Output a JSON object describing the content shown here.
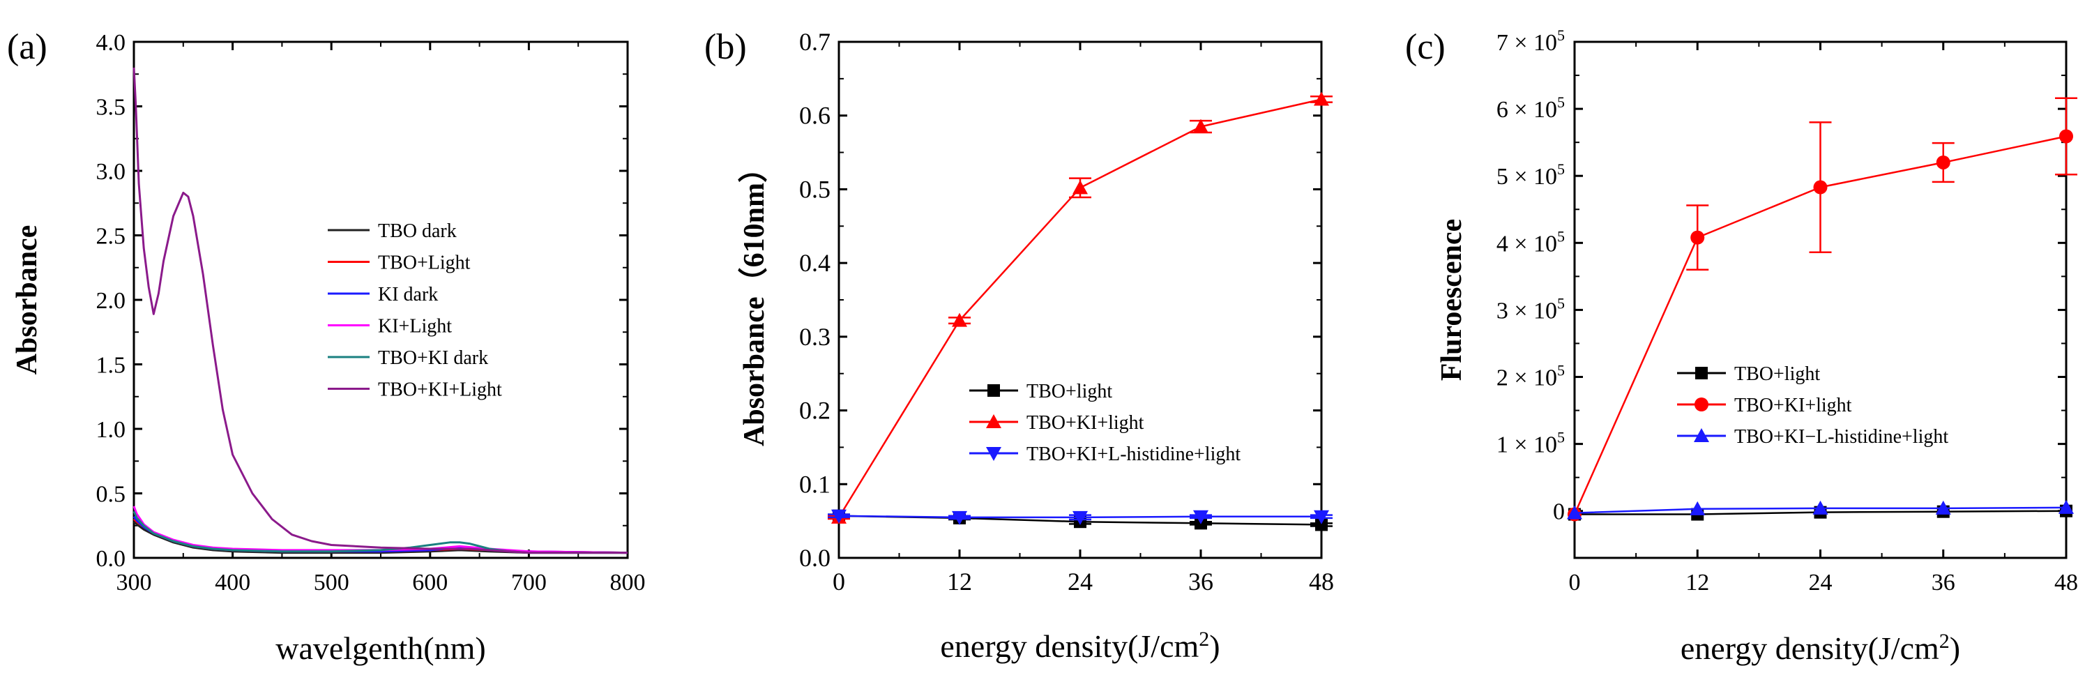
{
  "chart_data": [
    {
      "type": "line",
      "panel_label": "(a)",
      "xlabel": "wavelgenth(nm)",
      "ylabel": "Absorbance",
      "xlim": [
        300,
        800
      ],
      "ylim": [
        0,
        4.0
      ],
      "xticks": [
        300,
        400,
        500,
        600,
        700,
        800
      ],
      "xtick_labels": [
        "300",
        "400",
        "500",
        "600",
        "700",
        "800"
      ],
      "yticks": [
        0,
        0.5,
        1.0,
        1.5,
        2.0,
        2.5,
        3.0,
        3.5,
        4.0
      ],
      "ytick_labels": [
        "0.0",
        "0.5",
        "1.0",
        "1.5",
        "2.0",
        "2.5",
        "3.0",
        "3.5",
        "4.0"
      ],
      "legend_position": "center-right",
      "series": [
        {
          "name": "TBO dark",
          "color": "#222222",
          "x": [
            300,
            303,
            310,
            320,
            340,
            360,
            380,
            400,
            450,
            500,
            550,
            600,
            630,
            660,
            700,
            800
          ],
          "y": [
            0.28,
            0.26,
            0.22,
            0.18,
            0.12,
            0.08,
            0.06,
            0.05,
            0.04,
            0.04,
            0.04,
            0.05,
            0.06,
            0.05,
            0.04,
            0.04
          ]
        },
        {
          "name": "TBO+Light",
          "color": "#ff0000",
          "x": [
            300,
            303,
            310,
            320,
            340,
            360,
            380,
            400,
            450,
            500,
            550,
            600,
            630,
            660,
            700,
            800
          ],
          "y": [
            0.3,
            0.28,
            0.24,
            0.19,
            0.13,
            0.09,
            0.07,
            0.06,
            0.05,
            0.05,
            0.05,
            0.06,
            0.07,
            0.06,
            0.05,
            0.04
          ]
        },
        {
          "name": "KI dark",
          "color": "#1a1aff",
          "x": [
            300,
            303,
            310,
            320,
            340,
            360,
            380,
            400,
            450,
            500,
            550,
            600,
            630,
            660,
            700,
            800
          ],
          "y": [
            0.32,
            0.29,
            0.24,
            0.19,
            0.13,
            0.09,
            0.07,
            0.06,
            0.05,
            0.05,
            0.05,
            0.06,
            0.08,
            0.06,
            0.05,
            0.04
          ]
        },
        {
          "name": "KI+Light",
          "color": "#ff00ff",
          "x": [
            300,
            303,
            310,
            320,
            340,
            360,
            380,
            400,
            450,
            500,
            550,
            600,
            630,
            660,
            700,
            800
          ],
          "y": [
            0.4,
            0.34,
            0.26,
            0.2,
            0.14,
            0.1,
            0.08,
            0.07,
            0.06,
            0.06,
            0.06,
            0.07,
            0.09,
            0.07,
            0.05,
            0.04
          ]
        },
        {
          "name": "TBO+KI dark",
          "color": "#1a8080",
          "x": [
            300,
            303,
            310,
            320,
            340,
            360,
            380,
            400,
            450,
            500,
            550,
            580,
            600,
            620,
            630,
            640,
            660,
            680,
            700,
            800
          ],
          "y": [
            0.36,
            0.31,
            0.25,
            0.19,
            0.13,
            0.09,
            0.07,
            0.06,
            0.05,
            0.05,
            0.06,
            0.08,
            0.1,
            0.12,
            0.12,
            0.11,
            0.07,
            0.05,
            0.04,
            0.04
          ]
        },
        {
          "name": "TBO+KI+Light",
          "color": "#8b1a8b",
          "x": [
            300,
            302,
            305,
            310,
            315,
            320,
            325,
            330,
            340,
            350,
            355,
            360,
            370,
            380,
            390,
            400,
            420,
            440,
            460,
            480,
            500,
            550,
            600,
            620,
            640,
            660,
            680,
            700,
            800
          ],
          "y": [
            3.8,
            3.5,
            2.9,
            2.4,
            2.1,
            1.89,
            2.05,
            2.3,
            2.65,
            2.83,
            2.8,
            2.65,
            2.2,
            1.65,
            1.15,
            0.8,
            0.5,
            0.3,
            0.18,
            0.13,
            0.1,
            0.08,
            0.07,
            0.07,
            0.07,
            0.06,
            0.05,
            0.04,
            0.04
          ]
        }
      ]
    },
    {
      "type": "line",
      "panel_label": "(b)",
      "xlabel": "energy density(J/cm",
      "xlabel_sup": "2",
      "xlabel_end": ")",
      "ylabel": "Absorbance（610nm）",
      "xlim": [
        0,
        48
      ],
      "ylim": [
        0,
        0.7
      ],
      "xticks": [
        0,
        12,
        24,
        36,
        48
      ],
      "xtick_labels": [
        "0",
        "12",
        "24",
        "36",
        "48"
      ],
      "yticks": [
        0,
        0.1,
        0.2,
        0.3,
        0.4,
        0.5,
        0.6,
        0.7
      ],
      "ytick_labels": [
        "0.0",
        "0.1",
        "0.2",
        "0.3",
        "0.4",
        "0.5",
        "0.6",
        "0.7"
      ],
      "legend_position": "lower-right",
      "series": [
        {
          "name": "TBO+light",
          "color": "#000000",
          "marker": "square",
          "x": [
            0,
            12,
            24,
            36,
            48
          ],
          "y": [
            0.057,
            0.054,
            0.049,
            0.047,
            0.045
          ],
          "err": [
            0.002,
            0.002,
            0.003,
            0.002,
            0.002
          ]
        },
        {
          "name": "TBO+KI+light",
          "color": "#ff0000",
          "marker": "triangle-up",
          "x": [
            0,
            12,
            24,
            36,
            48
          ],
          "y": [
            0.055,
            0.322,
            0.502,
            0.585,
            0.622
          ],
          "err": [
            0.002,
            0.004,
            0.013,
            0.008,
            0.004
          ]
        },
        {
          "name": "TBO+KI+L-histidine+light",
          "color": "#1a1aff",
          "marker": "triangle-down",
          "x": [
            0,
            12,
            24,
            36,
            48
          ],
          "y": [
            0.057,
            0.055,
            0.055,
            0.056,
            0.056
          ],
          "err": [
            0.002,
            0.002,
            0.003,
            0.002,
            0.002
          ]
        }
      ]
    },
    {
      "type": "line",
      "panel_label": "(c)",
      "xlabel": "energy density(J/cm",
      "xlabel_sup": "2",
      "xlabel_end": ")",
      "ylabel": "Fluroescence",
      "xlim": [
        0,
        48
      ],
      "ylim": [
        -70000,
        700000
      ],
      "xticks": [
        0,
        12,
        24,
        36,
        48
      ],
      "xtick_labels": [
        "0",
        "12",
        "24",
        "36",
        "48"
      ],
      "yticks": [
        0,
        100000,
        200000,
        300000,
        400000,
        500000,
        600000,
        700000
      ],
      "ytick_labels": [
        {
          "base": "0",
          "exp": ""
        },
        {
          "base": "1 × 10",
          "exp": "5"
        },
        {
          "base": "2 × 10",
          "exp": "5"
        },
        {
          "base": "3 × 10",
          "exp": "5"
        },
        {
          "base": "4 × 10",
          "exp": "5"
        },
        {
          "base": "5 × 10",
          "exp": "5"
        },
        {
          "base": "6 × 10",
          "exp": "5"
        },
        {
          "base": "7 × 10",
          "exp": "5"
        }
      ],
      "legend_position": "lower-right",
      "series": [
        {
          "name": "TBO+light",
          "color": "#000000",
          "marker": "square",
          "x": [
            0,
            12,
            24,
            36,
            48
          ],
          "y": [
            -5000,
            -5000,
            -2000,
            -1000,
            0
          ],
          "err": [
            0,
            0,
            0,
            0,
            0
          ]
        },
        {
          "name": "TBO+KI+light",
          "color": "#ff0000",
          "marker": "circle",
          "x": [
            0,
            12,
            24,
            36,
            48
          ],
          "y": [
            -5000,
            408000,
            483000,
            520000,
            559000
          ],
          "err": [
            0,
            48000,
            97000,
            29000,
            57000
          ]
        },
        {
          "name": "TBO+KI−L-histidine+light",
          "color": "#1a1aff",
          "marker": "triangle-up",
          "x": [
            0,
            12,
            24,
            36,
            48
          ],
          "y": [
            -3000,
            3000,
            4000,
            4000,
            5000
          ],
          "err": [
            0,
            0,
            0,
            0,
            0
          ]
        }
      ]
    }
  ]
}
